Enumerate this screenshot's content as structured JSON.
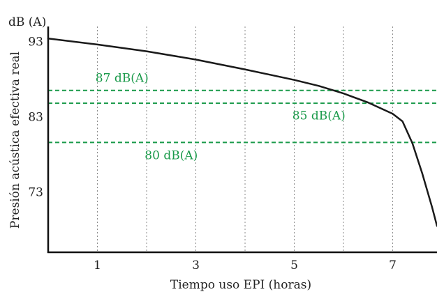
{
  "chart_data": {
    "type": "line",
    "title": "",
    "xlabel": "Tiempo uso EPI (horas)",
    "ylabel": "Presión acústica efectiva real",
    "yunit": "dB (A)",
    "xlim": [
      0,
      7.9
    ],
    "ylim": [
      65,
      95
    ],
    "x_ticks": [
      1,
      3,
      5,
      7
    ],
    "y_ticks": [
      73,
      83,
      93
    ],
    "x_gridlines": [
      1,
      2,
      3,
      4,
      5,
      6,
      7
    ],
    "grid": "vertical dotted",
    "series": [
      {
        "color": "#1a1a1a",
        "points": [
          [
            0,
            93.4
          ],
          [
            1,
            92.6
          ],
          [
            2,
            91.7
          ],
          [
            3,
            90.6
          ],
          [
            4,
            89.3
          ],
          [
            5,
            87.9
          ],
          [
            5.5,
            87.1
          ],
          [
            6,
            86.1
          ],
          [
            6.5,
            84.9
          ],
          [
            7,
            83.4
          ],
          [
            7.2,
            82.4
          ],
          [
            7.4,
            79.5
          ],
          [
            7.6,
            75.5
          ],
          [
            7.8,
            71
          ],
          [
            7.9,
            68.5
          ]
        ]
      }
    ],
    "reference_lines": [
      {
        "y": 86.5,
        "label": "87 dB(A)",
        "label_x": 1.5,
        "label_y": 88.2,
        "color": "#1a9a4a"
      },
      {
        "y": 84.8,
        "label": "85 dB(A)",
        "label_x": 5.5,
        "label_y": 83.2,
        "color": "#1a9a4a"
      },
      {
        "y": 79.6,
        "label": "80 dB(A)",
        "label_x": 2.5,
        "label_y": 77.9,
        "color": "#1a9a4a"
      }
    ]
  }
}
